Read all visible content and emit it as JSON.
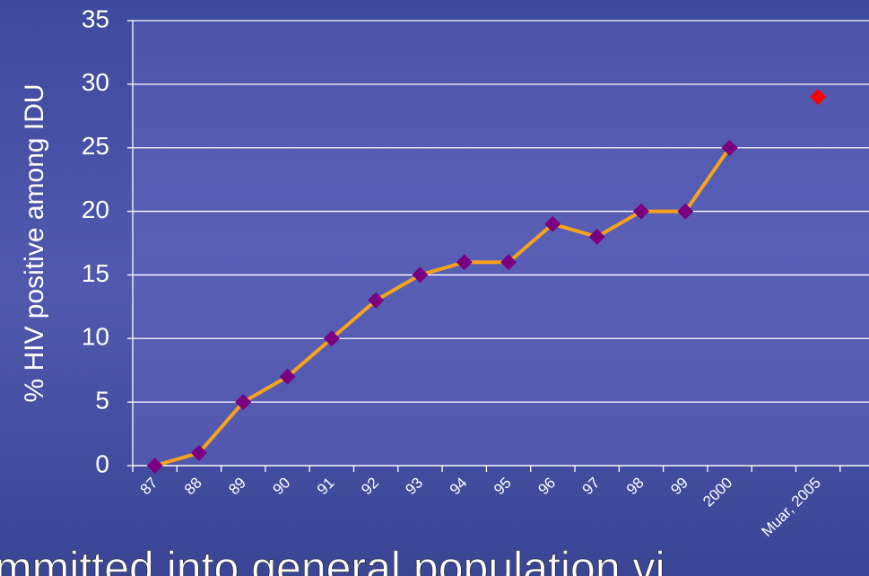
{
  "chart_data": {
    "type": "line",
    "y_label": "% HIV positive among IDU",
    "categories": [
      "87",
      "88",
      "89",
      "90",
      "91",
      "92",
      "93",
      "94",
      "95",
      "96",
      "97",
      "98",
      "99",
      "2000",
      null,
      "Muar, 2005"
    ],
    "series": [
      {
        "color": "#f7a31c",
        "marker_color": "#7b0080",
        "values": [
          0,
          1,
          5,
          7,
          10,
          13,
          15,
          16,
          16,
          19,
          18,
          20,
          20,
          25,
          null,
          null
        ]
      },
      {
        "color": "#ff0000",
        "marker_color": "#ff0000",
        "line": false,
        "values": [
          null,
          null,
          null,
          null,
          null,
          null,
          null,
          null,
          null,
          null,
          null,
          null,
          null,
          null,
          null,
          29
        ]
      }
    ],
    "ylim": [
      0,
      35
    ],
    "yticks": [
      0,
      5,
      10,
      15,
      20,
      25,
      30,
      35
    ],
    "grid": true,
    "footer_text": "mmitted into general population vi"
  }
}
